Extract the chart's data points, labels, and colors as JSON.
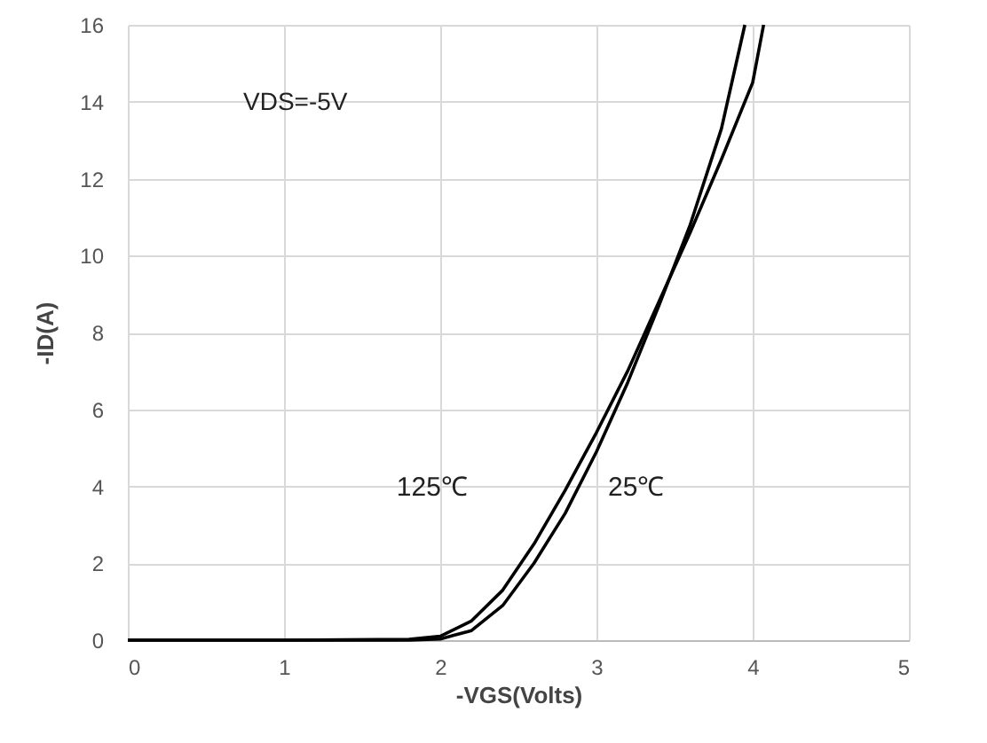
{
  "chart_data": {
    "type": "line",
    "xlabel": "-VGS(Volts)",
    "ylabel": "-ID(A)",
    "xlim": [
      0,
      5
    ],
    "ylim": [
      0,
      16
    ],
    "xticks": [
      0,
      1,
      2,
      3,
      4,
      5
    ],
    "yticks": [
      0,
      2,
      4,
      6,
      8,
      10,
      12,
      14,
      16
    ],
    "grid": true,
    "annotations": [
      "VDS=-5V"
    ],
    "series": [
      {
        "name": "125℃",
        "color": "#000000",
        "x": [
          0,
          1,
          1.8,
          2.0,
          2.2,
          2.4,
          2.6,
          2.8,
          3.0,
          3.2,
          3.4,
          3.6,
          3.8,
          4.0,
          4.07
        ],
        "values": [
          0,
          0,
          0.02,
          0.1,
          0.5,
          1.3,
          2.5,
          3.9,
          5.4,
          7.0,
          8.8,
          10.6,
          12.5,
          14.5,
          16
        ]
      },
      {
        "name": "25℃",
        "color": "#000000",
        "x": [
          0,
          1,
          1.8,
          2.0,
          2.2,
          2.4,
          2.6,
          2.8,
          3.0,
          3.2,
          3.4,
          3.6,
          3.8,
          3.95
        ],
        "values": [
          0,
          0,
          0,
          0.03,
          0.25,
          0.9,
          2.0,
          3.3,
          4.9,
          6.7,
          8.7,
          10.8,
          13.3,
          16
        ]
      }
    ]
  }
}
